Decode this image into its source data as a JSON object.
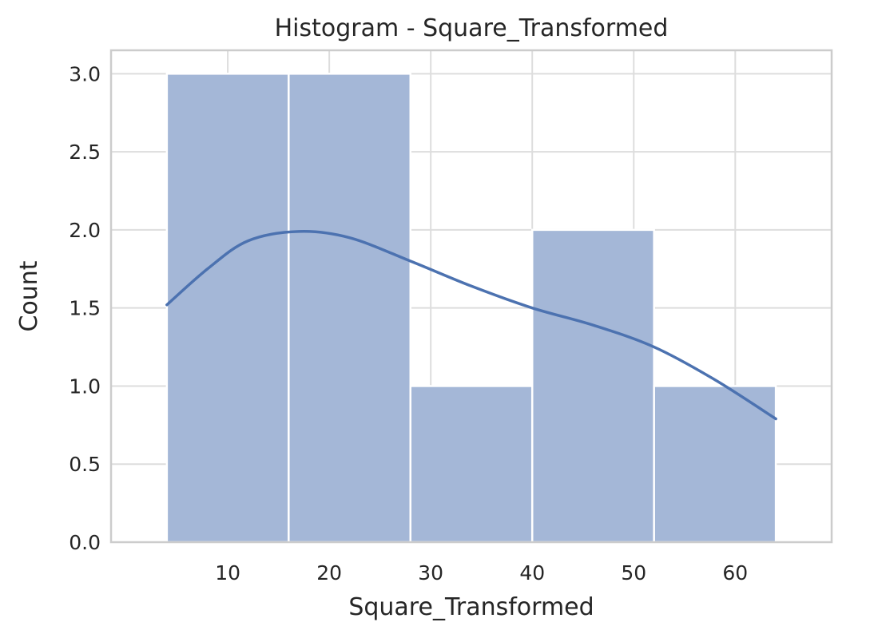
{
  "chart_data": {
    "type": "bar",
    "title": "Histogram - Square_Transformed",
    "xlabel": "Square_Transformed",
    "ylabel": "Count",
    "bins": [
      {
        "start": 4,
        "end": 16,
        "count": 3
      },
      {
        "start": 16,
        "end": 28,
        "count": 3
      },
      {
        "start": 28,
        "end": 40,
        "count": 1
      },
      {
        "start": 40,
        "end": 52,
        "count": 2
      },
      {
        "start": 52,
        "end": 64,
        "count": 1
      }
    ],
    "kde_curve": {
      "x": [
        4,
        8,
        12,
        17,
        22,
        28,
        34,
        40,
        46,
        52,
        58,
        64
      ],
      "y": [
        1.52,
        1.75,
        1.93,
        1.99,
        1.95,
        1.8,
        1.64,
        1.5,
        1.39,
        1.25,
        1.04,
        0.79
      ]
    },
    "x_ticks": [
      10,
      20,
      30,
      40,
      50,
      60
    ],
    "y_ticks": [
      0.0,
      0.5,
      1.0,
      1.5,
      2.0,
      2.5,
      3.0
    ],
    "y_tick_labels": [
      "0.0",
      "0.5",
      "1.0",
      "1.5",
      "2.0",
      "2.5",
      "3.0"
    ],
    "xlim": [
      -1.5,
      69.5
    ],
    "ylim": [
      0,
      3.15
    ],
    "grid": true,
    "colors": {
      "bar_fill": "#a4b7d7",
      "bar_edge": "#ffffff",
      "kde_line": "#4c72b0"
    }
  }
}
